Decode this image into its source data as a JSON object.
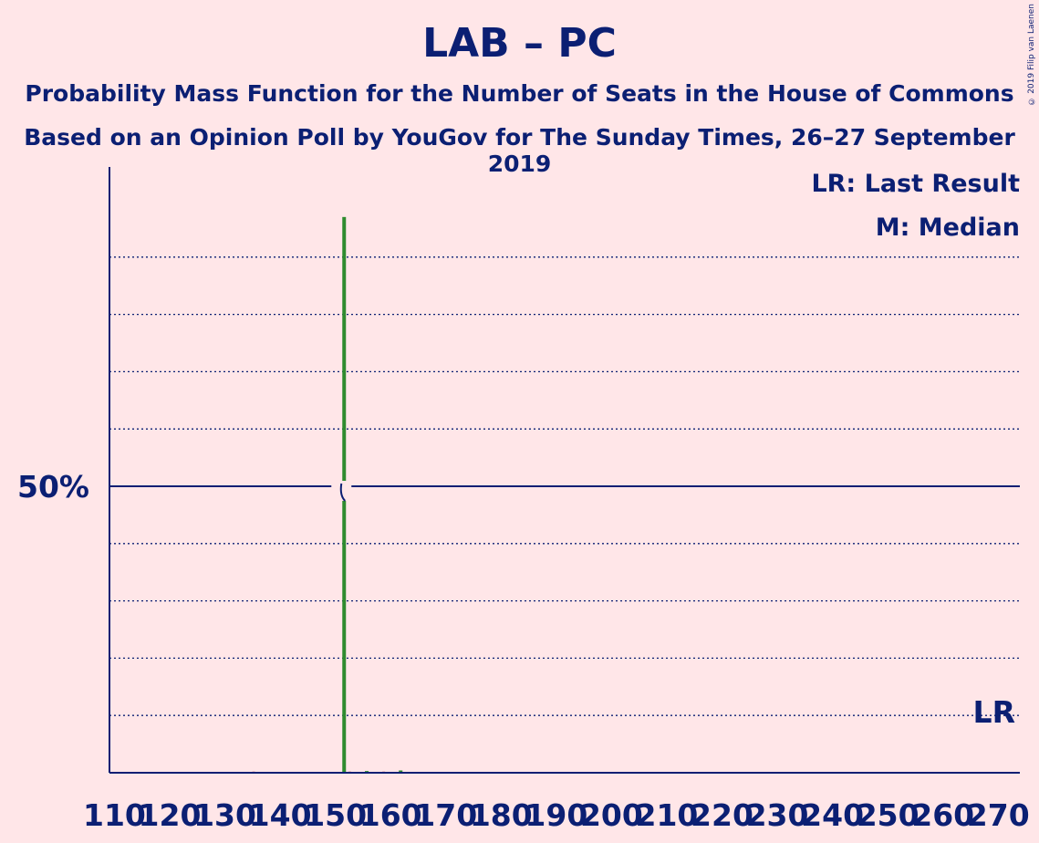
{
  "header": {
    "title": "LAB – PC",
    "subtitle1": "Probability Mass Function for the Number of Seats in the House of Commons",
    "subtitle2": "Based on an Opinion Poll by YouGov for The Sunday Times, 26–27 September 2019",
    "copyright": "© 2019 Filip van Laenen"
  },
  "legend": {
    "lr": "LR: Last Result",
    "median": "M: Median"
  },
  "colors": {
    "background": "#ffe6e8",
    "axis": "#0b1f73",
    "bar_green": "#2e8b2e",
    "bar_red": "#e0a0a0"
  },
  "chart_data": {
    "type": "bar",
    "x_ticks": [
      "110",
      "120",
      "130",
      "140",
      "150",
      "160",
      "170",
      "180",
      "190",
      "200",
      "210",
      "220",
      "230",
      "240",
      "250",
      "260",
      "270"
    ],
    "xlim": [
      109,
      270
    ],
    "ylim": [
      0,
      100
    ],
    "y_tick_label": "50%",
    "y_tick_value": 50,
    "grid_values": [
      10,
      20,
      30,
      40,
      60,
      70,
      80,
      90
    ],
    "bars": [
      {
        "x": 134,
        "value": 0.2,
        "color": "red"
      },
      {
        "x": 150,
        "value": 97,
        "color": "green"
      },
      {
        "x": 151,
        "value": 0.2,
        "color": "red"
      },
      {
        "x": 154,
        "value": 0.3,
        "color": "green"
      },
      {
        "x": 157,
        "value": 0.2,
        "color": "red"
      },
      {
        "x": 160,
        "value": 0.4,
        "color": "green"
      }
    ],
    "median_x": 150,
    "median_label": "M",
    "last_result_x": 269,
    "last_result_label": "LR"
  }
}
